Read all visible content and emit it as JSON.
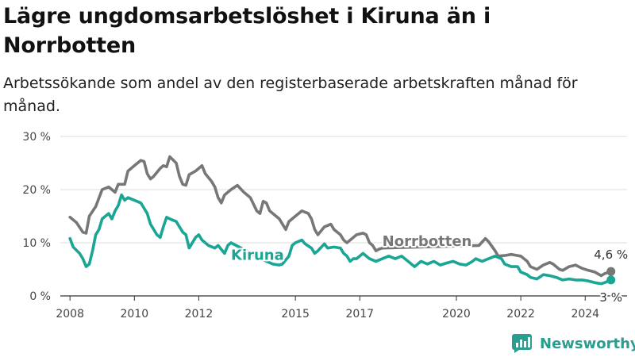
{
  "title": "Lägre ungdomsarbetslöshet i Kiruna än i Norrbotten",
  "subtitle": "Arbetssökande som andel av den registerbaserade arbetskraften månad för månad.",
  "brand": "Newsworthy",
  "colors": {
    "kiruna": "#1aa595",
    "norrbotten": "#777777",
    "grid": "#dddddd",
    "brand": "#2a9d8f"
  },
  "chart_data": {
    "type": "line",
    "xlim": [
      2007.7,
      2025.3
    ],
    "ylim": [
      0,
      30
    ],
    "x_ticks": [
      {
        "value": 2008,
        "label": "2008"
      },
      {
        "value": 2010,
        "label": "2010"
      },
      {
        "value": 2012,
        "label": "2012"
      },
      {
        "value": 2015,
        "label": "2015"
      },
      {
        "value": 2017,
        "label": "2017"
      },
      {
        "value": 2020,
        "label": "2020"
      },
      {
        "value": 2022,
        "label": "2022"
      },
      {
        "value": 2024,
        "label": "2024"
      }
    ],
    "y_ticks": [
      {
        "value": 0,
        "label": "0 %"
      },
      {
        "value": 10,
        "label": "10 %"
      },
      {
        "value": 20,
        "label": "20 %"
      },
      {
        "value": 30,
        "label": "30 %"
      }
    ],
    "grid": true,
    "series": [
      {
        "name": "Norrbotten",
        "label": "Norrbotten",
        "end_label": "4,6 %",
        "points": [
          [
            2008.0,
            14.8
          ],
          [
            2008.2,
            13.8
          ],
          [
            2008.4,
            12.0
          ],
          [
            2008.5,
            11.8
          ],
          [
            2008.6,
            15.0
          ],
          [
            2008.8,
            16.8
          ],
          [
            2009.0,
            20.0
          ],
          [
            2009.2,
            20.5
          ],
          [
            2009.4,
            19.5
          ],
          [
            2009.5,
            21.0
          ],
          [
            2009.7,
            21.0
          ],
          [
            2009.8,
            23.5
          ],
          [
            2010.0,
            24.5
          ],
          [
            2010.2,
            25.5
          ],
          [
            2010.3,
            25.3
          ],
          [
            2010.4,
            23.0
          ],
          [
            2010.5,
            22.0
          ],
          [
            2010.6,
            22.5
          ],
          [
            2010.8,
            24.0
          ],
          [
            2010.9,
            24.5
          ],
          [
            2011.0,
            24.3
          ],
          [
            2011.1,
            26.2
          ],
          [
            2011.3,
            25.0
          ],
          [
            2011.4,
            22.5
          ],
          [
            2011.5,
            21.0
          ],
          [
            2011.6,
            20.8
          ],
          [
            2011.7,
            22.8
          ],
          [
            2011.9,
            23.5
          ],
          [
            2012.1,
            24.5
          ],
          [
            2012.2,
            23.0
          ],
          [
            2012.4,
            21.5
          ],
          [
            2012.5,
            20.5
          ],
          [
            2012.6,
            18.5
          ],
          [
            2012.7,
            17.5
          ],
          [
            2012.8,
            19.0
          ],
          [
            2013.0,
            20.0
          ],
          [
            2013.2,
            20.8
          ],
          [
            2013.4,
            19.5
          ],
          [
            2013.6,
            18.5
          ],
          [
            2013.8,
            16.0
          ],
          [
            2013.9,
            15.5
          ],
          [
            2014.0,
            17.8
          ],
          [
            2014.1,
            17.5
          ],
          [
            2014.2,
            16.0
          ],
          [
            2014.4,
            15.0
          ],
          [
            2014.5,
            14.5
          ],
          [
            2014.6,
            13.5
          ],
          [
            2014.7,
            12.5
          ],
          [
            2014.8,
            14.0
          ],
          [
            2015.0,
            15.0
          ],
          [
            2015.2,
            16.0
          ],
          [
            2015.4,
            15.5
          ],
          [
            2015.5,
            14.5
          ],
          [
            2015.6,
            12.5
          ],
          [
            2015.7,
            11.5
          ],
          [
            2015.9,
            13.0
          ],
          [
            2016.1,
            13.5
          ],
          [
            2016.2,
            12.5
          ],
          [
            2016.4,
            11.5
          ],
          [
            2016.5,
            10.5
          ],
          [
            2016.6,
            10.0
          ],
          [
            2016.8,
            11.0
          ],
          [
            2016.9,
            11.5
          ],
          [
            2017.1,
            11.8
          ],
          [
            2017.2,
            11.5
          ],
          [
            2017.3,
            10.0
          ],
          [
            2017.4,
            9.5
          ],
          [
            2017.5,
            8.5
          ],
          [
            2017.6,
            8.8
          ],
          [
            2017.7,
            9.0
          ],
          [
            2020.7,
            9.5
          ],
          [
            2020.9,
            10.8
          ],
          [
            2021.0,
            10.2
          ],
          [
            2021.2,
            8.5
          ],
          [
            2021.3,
            7.5
          ],
          [
            2021.5,
            7.6
          ],
          [
            2021.7,
            7.8
          ],
          [
            2021.9,
            7.6
          ],
          [
            2022.0,
            7.5
          ],
          [
            2022.2,
            6.5
          ],
          [
            2022.3,
            5.5
          ],
          [
            2022.5,
            5.0
          ],
          [
            2022.7,
            5.8
          ],
          [
            2022.9,
            6.3
          ],
          [
            2023.0,
            6.0
          ],
          [
            2023.2,
            5.0
          ],
          [
            2023.3,
            4.8
          ],
          [
            2023.5,
            5.5
          ],
          [
            2023.7,
            5.8
          ],
          [
            2023.9,
            5.2
          ],
          [
            2024.1,
            4.8
          ],
          [
            2024.3,
            4.5
          ],
          [
            2024.5,
            3.8
          ],
          [
            2024.6,
            4.2
          ],
          [
            2024.8,
            4.6
          ]
        ]
      },
      {
        "name": "Kiruna",
        "label": "Kiruna",
        "end_label": "3 %",
        "points": [
          [
            2008.0,
            10.8
          ],
          [
            2008.1,
            9.2
          ],
          [
            2008.3,
            8.0
          ],
          [
            2008.4,
            7.0
          ],
          [
            2008.5,
            5.5
          ],
          [
            2008.6,
            6.0
          ],
          [
            2008.7,
            8.5
          ],
          [
            2008.8,
            11.5
          ],
          [
            2008.9,
            12.5
          ],
          [
            2009.0,
            14.5
          ],
          [
            2009.2,
            15.5
          ],
          [
            2009.3,
            14.5
          ],
          [
            2009.4,
            16.0
          ],
          [
            2009.5,
            17.0
          ],
          [
            2009.6,
            19.0
          ],
          [
            2009.7,
            18.0
          ],
          [
            2009.8,
            18.5
          ],
          [
            2010.0,
            18.0
          ],
          [
            2010.2,
            17.5
          ],
          [
            2010.3,
            16.5
          ],
          [
            2010.4,
            15.5
          ],
          [
            2010.5,
            13.5
          ],
          [
            2010.7,
            11.5
          ],
          [
            2010.8,
            11.0
          ],
          [
            2010.9,
            13.0
          ],
          [
            2011.0,
            14.8
          ],
          [
            2011.1,
            14.5
          ],
          [
            2011.3,
            14.0
          ],
          [
            2011.5,
            12.0
          ],
          [
            2011.6,
            11.5
          ],
          [
            2011.7,
            9.0
          ],
          [
            2011.9,
            11.0
          ],
          [
            2012.0,
            11.5
          ],
          [
            2012.1,
            10.5
          ],
          [
            2012.3,
            9.5
          ],
          [
            2012.5,
            9.0
          ],
          [
            2012.6,
            9.5
          ],
          [
            2012.8,
            8.0
          ],
          [
            2012.9,
            9.5
          ],
          [
            2013.0,
            10.0
          ],
          [
            2014.1,
            6.5
          ],
          [
            2014.3,
            6.0
          ],
          [
            2014.5,
            5.8
          ],
          [
            2014.6,
            6.0
          ],
          [
            2014.8,
            7.5
          ],
          [
            2014.9,
            9.5
          ],
          [
            2015.0,
            10.0
          ],
          [
            2015.2,
            10.5
          ],
          [
            2015.3,
            9.8
          ],
          [
            2015.5,
            9.0
          ],
          [
            2015.6,
            8.0
          ],
          [
            2015.7,
            8.5
          ],
          [
            2015.9,
            9.8
          ],
          [
            2016.0,
            9.0
          ],
          [
            2016.2,
            9.2
          ],
          [
            2016.4,
            9.0
          ],
          [
            2016.5,
            8.0
          ],
          [
            2016.6,
            7.5
          ],
          [
            2016.7,
            6.5
          ],
          [
            2016.8,
            7.0
          ],
          [
            2016.9,
            7.0
          ],
          [
            2017.1,
            8.0
          ],
          [
            2017.2,
            7.5
          ],
          [
            2017.3,
            7.0
          ],
          [
            2017.5,
            6.5
          ],
          [
            2017.7,
            7.0
          ],
          [
            2017.9,
            7.5
          ],
          [
            2018.1,
            7.0
          ],
          [
            2018.3,
            7.5
          ],
          [
            2018.5,
            6.5
          ],
          [
            2018.7,
            5.5
          ],
          [
            2018.9,
            6.5
          ],
          [
            2019.1,
            6.0
          ],
          [
            2019.3,
            6.5
          ],
          [
            2019.5,
            5.8
          ],
          [
            2019.7,
            6.2
          ],
          [
            2019.9,
            6.5
          ],
          [
            2020.1,
            6.0
          ],
          [
            2020.3,
            5.8
          ],
          [
            2020.5,
            6.5
          ],
          [
            2020.6,
            7.0
          ],
          [
            2020.8,
            6.5
          ],
          [
            2021.0,
            7.0
          ],
          [
            2021.2,
            7.5
          ],
          [
            2021.4,
            7.0
          ],
          [
            2021.5,
            6.0
          ],
          [
            2021.7,
            5.5
          ],
          [
            2021.9,
            5.5
          ],
          [
            2022.0,
            4.5
          ],
          [
            2022.2,
            4.0
          ],
          [
            2022.3,
            3.5
          ],
          [
            2022.5,
            3.2
          ],
          [
            2022.7,
            4.0
          ],
          [
            2022.9,
            3.8
          ],
          [
            2023.1,
            3.5
          ],
          [
            2023.3,
            3.0
          ],
          [
            2023.5,
            3.2
          ],
          [
            2023.7,
            3.0
          ],
          [
            2023.9,
            3.0
          ],
          [
            2024.1,
            2.8
          ],
          [
            2024.3,
            2.5
          ],
          [
            2024.5,
            2.3
          ],
          [
            2024.6,
            2.5
          ],
          [
            2024.8,
            3.0
          ]
        ]
      }
    ]
  }
}
